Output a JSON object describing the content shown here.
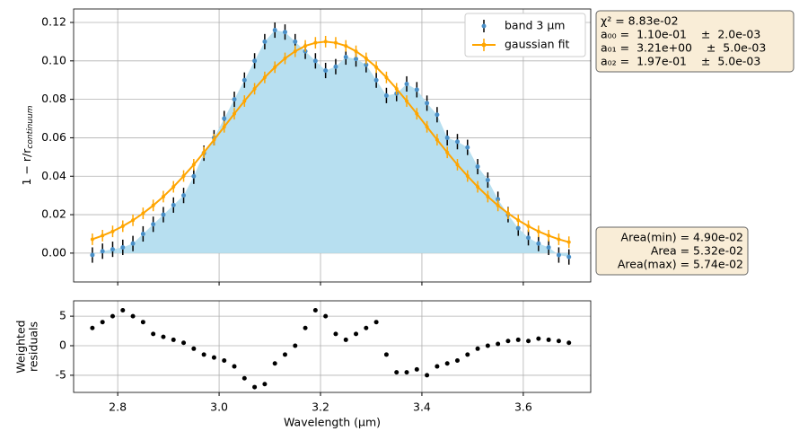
{
  "chart_data": [
    {
      "type": "errorbar",
      "ylabel": "1 − r/r",
      "ylabel_subscript": "continuum",
      "x": [
        2.75,
        2.77,
        2.79,
        2.81,
        2.83,
        2.85,
        2.87,
        2.89,
        2.91,
        2.93,
        2.95,
        2.97,
        2.99,
        3.01,
        3.03,
        3.05,
        3.07,
        3.09,
        3.11,
        3.13,
        3.15,
        3.17,
        3.19,
        3.21,
        3.23,
        3.25,
        3.27,
        3.29,
        3.31,
        3.33,
        3.35,
        3.37,
        3.39,
        3.41,
        3.43,
        3.45,
        3.47,
        3.49,
        3.51,
        3.53,
        3.55,
        3.57,
        3.59,
        3.61,
        3.63,
        3.65,
        3.67,
        3.69
      ],
      "series": [
        {
          "name": "band 3 µm",
          "color": "#4a90c8",
          "errcolor": "#000000",
          "values": [
            -0.001,
            0.001,
            0.002,
            0.003,
            0.005,
            0.01,
            0.015,
            0.02,
            0.025,
            0.03,
            0.04,
            0.052,
            0.06,
            0.07,
            0.08,
            0.09,
            0.1,
            0.11,
            0.116,
            0.115,
            0.11,
            0.105,
            0.1,
            0.095,
            0.097,
            0.102,
            0.101,
            0.098,
            0.09,
            0.082,
            0.083,
            0.088,
            0.085,
            0.078,
            0.072,
            0.06,
            0.058,
            0.055,
            0.045,
            0.038,
            0.028,
            0.02,
            0.013,
            0.008,
            0.005,
            0.003,
            -0.001,
            -0.002
          ],
          "errors": [
            0.004,
            0.004,
            0.004,
            0.004,
            0.004,
            0.004,
            0.004,
            0.004,
            0.004,
            0.004,
            0.004,
            0.004,
            0.004,
            0.004,
            0.004,
            0.004,
            0.004,
            0.004,
            0.004,
            0.004,
            0.004,
            0.004,
            0.004,
            0.004,
            0.004,
            0.004,
            0.004,
            0.004,
            0.004,
            0.004,
            0.004,
            0.004,
            0.004,
            0.004,
            0.004,
            0.004,
            0.004,
            0.004,
            0.004,
            0.004,
            0.004,
            0.004,
            0.004,
            0.004,
            0.004,
            0.004,
            0.004,
            0.004
          ]
        },
        {
          "name": "gaussian fit",
          "color": "#ffa500",
          "errcolor": "#ffa500",
          "values": [
            0.0072,
            0.0091,
            0.0113,
            0.014,
            0.0171,
            0.0207,
            0.0248,
            0.0294,
            0.0345,
            0.0401,
            0.046,
            0.0524,
            0.059,
            0.0657,
            0.0725,
            0.0791,
            0.0855,
            0.0914,
            0.0967,
            0.1013,
            0.105,
            0.1078,
            0.1094,
            0.11,
            0.1094,
            0.1078,
            0.105,
            0.1013,
            0.0967,
            0.0914,
            0.0855,
            0.0791,
            0.0725,
            0.0657,
            0.059,
            0.0524,
            0.046,
            0.0401,
            0.0345,
            0.0294,
            0.0248,
            0.0207,
            0.0171,
            0.014,
            0.0113,
            0.0091,
            0.0072,
            0.0057
          ],
          "errors": [
            0.003,
            0.003,
            0.003,
            0.003,
            0.003,
            0.003,
            0.003,
            0.003,
            0.003,
            0.003,
            0.003,
            0.003,
            0.003,
            0.003,
            0.003,
            0.003,
            0.003,
            0.003,
            0.003,
            0.003,
            0.003,
            0.003,
            0.003,
            0.003,
            0.003,
            0.003,
            0.003,
            0.003,
            0.003,
            0.003,
            0.003,
            0.003,
            0.003,
            0.003,
            0.003,
            0.003,
            0.003,
            0.003,
            0.003,
            0.003,
            0.003,
            0.003,
            0.003,
            0.003,
            0.003,
            0.003,
            0.003,
            0.003
          ]
        }
      ],
      "fill_color": "#b7dff0",
      "xlim": [
        2.713,
        3.733
      ],
      "xticks": [
        2.8,
        3.0,
        3.2,
        3.4,
        3.6
      ],
      "ylim": [
        -0.015,
        0.127
      ],
      "yticks": [
        0.0,
        0.02,
        0.04,
        0.06,
        0.08,
        0.1,
        0.12
      ],
      "ytick_labels": [
        "0.00",
        "0.02",
        "0.04",
        "0.06",
        "0.08",
        "0.10",
        "0.12"
      ],
      "grid": true,
      "legend": "upper right",
      "annotations": [
        {
          "lines": [
            "χ² = 8.83e-02",
            "a₀₀ =  1.10e-01    ±  2.0e-03",
            "a₀₁ =  3.21e+00    ±  5.0e-03",
            "a₀₂ =  1.97e-01    ±  5.0e-03"
          ],
          "align": "left"
        },
        {
          "lines": [
            "Area(min) = 4.90e-02",
            "Area = 5.32e-02",
            "Area(max) = 5.74e-02"
          ],
          "align": "right"
        }
      ]
    },
    {
      "type": "scatter",
      "xlabel": "Wavelength (μm)",
      "ylabel": [
        "Weighted",
        "residuals"
      ],
      "x": [
        2.75,
        2.77,
        2.79,
        2.81,
        2.83,
        2.85,
        2.87,
        2.89,
        2.91,
        2.93,
        2.95,
        2.97,
        2.99,
        3.01,
        3.03,
        3.05,
        3.07,
        3.09,
        3.11,
        3.13,
        3.15,
        3.17,
        3.19,
        3.21,
        3.23,
        3.25,
        3.27,
        3.29,
        3.31,
        3.33,
        3.35,
        3.37,
        3.39,
        3.41,
        3.43,
        3.45,
        3.47,
        3.49,
        3.51,
        3.53,
        3.55,
        3.57,
        3.59,
        3.61,
        3.63,
        3.65,
        3.67,
        3.69
      ],
      "values": [
        3,
        4,
        5,
        6,
        5,
        4,
        2,
        1.5,
        1,
        0.5,
        -0.5,
        -1.5,
        -2,
        -2.5,
        -3.5,
        -5.5,
        -7,
        -6.5,
        -3,
        -1.5,
        0,
        3,
        6,
        5,
        2,
        1,
        2,
        3,
        4,
        -1.5,
        -4.5,
        -4.5,
        -4,
        -5,
        -3.5,
        -3,
        -2.5,
        -1.5,
        -0.5,
        0,
        0.3,
        0.8,
        1,
        0.8,
        1.2,
        1,
        0.8,
        0.5
      ],
      "color": "#000000",
      "xlim": [
        2.713,
        3.733
      ],
      "xticks": [
        2.8,
        3.0,
        3.2,
        3.4,
        3.6
      ],
      "ylim": [
        -7.9,
        7.6
      ],
      "yticks": [
        -5,
        0,
        5
      ],
      "grid": true
    }
  ]
}
